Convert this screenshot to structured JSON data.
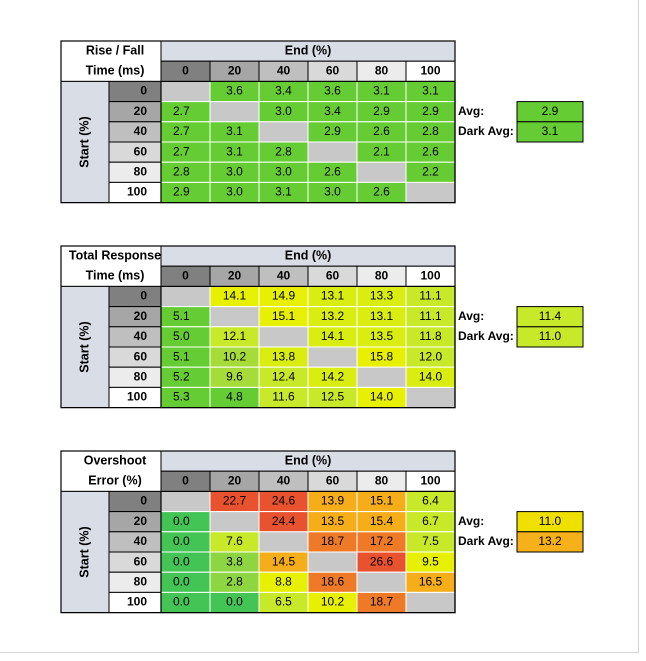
{
  "chart_data": [
    {
      "type": "heatmap",
      "title_lines": [
        "Rise / Fall",
        "Time (ms)"
      ],
      "col_header": "End (%)",
      "row_header": "Start (%)",
      "columns": [
        "0",
        "20",
        "40",
        "60",
        "80",
        "100"
      ],
      "rows": [
        "0",
        "20",
        "40",
        "60",
        "80",
        "100"
      ],
      "values": [
        [
          null,
          3.6,
          3.4,
          3.6,
          3.1,
          3.1
        ],
        [
          2.7,
          null,
          3.0,
          3.4,
          2.9,
          2.9
        ],
        [
          2.7,
          3.1,
          null,
          2.9,
          2.6,
          2.8
        ],
        [
          2.7,
          3.1,
          2.8,
          null,
          2.1,
          2.6
        ],
        [
          2.8,
          3.0,
          3.0,
          2.6,
          null,
          2.2
        ],
        [
          2.9,
          3.0,
          3.1,
          3.0,
          2.6,
          null
        ]
      ],
      "cell_colors": [
        [
          null,
          "#66cc33",
          "#66cc33",
          "#66cc33",
          "#66cc33",
          "#66cc33"
        ],
        [
          "#66cc33",
          null,
          "#66cc33",
          "#66cc33",
          "#66cc33",
          "#66cc33"
        ],
        [
          "#66cc33",
          "#66cc33",
          null,
          "#66cc33",
          "#66cc33",
          "#66cc33"
        ],
        [
          "#66cc33",
          "#66cc33",
          "#66cc33",
          null,
          "#66cc33",
          "#66cc33"
        ],
        [
          "#66cc33",
          "#66cc33",
          "#66cc33",
          "#66cc33",
          null,
          "#66cc33"
        ],
        [
          "#66cc33",
          "#66cc33",
          "#66cc33",
          "#66cc33",
          "#66cc33",
          null
        ]
      ],
      "summary": [
        {
          "label": "Avg:",
          "value": "2.9",
          "color": "#66cc33"
        },
        {
          "label": "Dark Avg:",
          "value": "3.1",
          "color": "#66cc33"
        }
      ]
    },
    {
      "type": "heatmap",
      "title_lines": [
        "Total Response",
        "Time (ms)"
      ],
      "col_header": "End (%)",
      "row_header": "Start (%)",
      "columns": [
        "0",
        "20",
        "40",
        "60",
        "80",
        "100"
      ],
      "rows": [
        "0",
        "20",
        "40",
        "60",
        "80",
        "100"
      ],
      "values": [
        [
          null,
          14.1,
          14.9,
          13.1,
          13.3,
          11.1
        ],
        [
          5.1,
          null,
          15.1,
          13.2,
          13.1,
          11.1
        ],
        [
          5.0,
          12.1,
          null,
          14.1,
          13.5,
          11.8
        ],
        [
          5.1,
          10.2,
          13.8,
          null,
          15.8,
          12.0
        ],
        [
          5.2,
          9.6,
          12.4,
          14.2,
          null,
          14.0
        ],
        [
          5.3,
          4.8,
          11.6,
          12.5,
          14.0,
          null
        ]
      ],
      "cell_colors": [
        [
          null,
          "#e6f000",
          "#e6f000",
          "#d9ee10",
          "#d9ee10",
          "#c8e82a"
        ],
        [
          "#66cc33",
          null,
          "#e6f000",
          "#d9ee10",
          "#d9ee10",
          "#c8e82a"
        ],
        [
          "#66cc33",
          "#c8e82a",
          null,
          "#d9ee10",
          "#d9ee10",
          "#c8e82a"
        ],
        [
          "#66cc33",
          "#a6dc3a",
          "#d9ee10",
          null,
          "#e6f000",
          "#c8e82a"
        ],
        [
          "#66cc33",
          "#a6dc3a",
          "#c8e82a",
          "#d9ee10",
          null,
          "#d9ee10"
        ],
        [
          "#66cc33",
          "#66cc33",
          "#c8e82a",
          "#c8e82a",
          "#e6f000",
          null
        ]
      ],
      "summary": [
        {
          "label": "Avg:",
          "value": "11.4",
          "color": "#c8e82a"
        },
        {
          "label": "Dark Avg:",
          "value": "11.0",
          "color": "#c8e82a"
        }
      ]
    },
    {
      "type": "heatmap",
      "title_lines": [
        "Overshoot",
        "Error (%)"
      ],
      "col_header": "End (%)",
      "row_header": "Start (%)",
      "columns": [
        "0",
        "20",
        "40",
        "60",
        "80",
        "100"
      ],
      "rows": [
        "0",
        "20",
        "40",
        "60",
        "80",
        "100"
      ],
      "values": [
        [
          null,
          22.7,
          24.6,
          13.9,
          15.1,
          6.4
        ],
        [
          0.0,
          null,
          24.4,
          13.5,
          15.4,
          6.7
        ],
        [
          0.0,
          7.6,
          null,
          18.7,
          17.2,
          7.5
        ],
        [
          0.0,
          3.8,
          14.5,
          null,
          26.6,
          9.5
        ],
        [
          0.0,
          2.8,
          8.8,
          18.6,
          null,
          16.5
        ],
        [
          0.0,
          0.0,
          6.5,
          10.2,
          18.7,
          null
        ]
      ],
      "cell_colors": [
        [
          null,
          "#e8522e",
          "#e8522e",
          "#f5ad1a",
          "#f5ad1a",
          "#c8e82a"
        ],
        [
          "#44c455",
          null,
          "#e8522e",
          "#f5ad1a",
          "#f5ad1a",
          "#c8e82a"
        ],
        [
          "#44c455",
          "#c8e82a",
          null,
          "#ee7a28",
          "#ee7a28",
          "#c8e82a"
        ],
        [
          "#44c455",
          "#8ed641",
          "#f5ad1a",
          null,
          "#e8522e",
          "#e6f000"
        ],
        [
          "#44c455",
          "#8ed641",
          "#e6f000",
          "#ee7a28",
          null,
          "#f5ad1a"
        ],
        [
          "#44c455",
          "#44c455",
          "#c8e82a",
          "#e6f000",
          "#ee7a28",
          null
        ]
      ],
      "summary": [
        {
          "label": "Avg:",
          "value": "11.0",
          "color": "#f0e000"
        },
        {
          "label": "Dark Avg:",
          "value": "13.2",
          "color": "#f5b01a"
        }
      ]
    }
  ],
  "colors": {
    "header_bg": "#d9dde6",
    "empty_cell": "#c8c8c8",
    "grey_dark": "#808080",
    "grey_mid": "#a6a6a6",
    "grey_light": "#bfbfbf",
    "grey_lighter": "#d9d9d9",
    "grey_lightest": "#ececec",
    "white": "#ffffff"
  }
}
